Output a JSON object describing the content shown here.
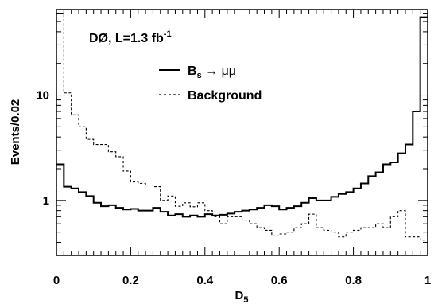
{
  "chart_data": {
    "type": "histogram-step",
    "annotation": {
      "main": "DØ, L=1.3 fb",
      "sup": "-1"
    },
    "xlabel": {
      "main": "D",
      "sub": "5"
    },
    "ylabel": "Events/0.02",
    "xlim": [
      0,
      1
    ],
    "ylim": [
      0.3,
      65
    ],
    "yscale": "log",
    "x_ticks": [
      {
        "value": 0,
        "label": "0"
      },
      {
        "value": 0.2,
        "label": "0.2"
      },
      {
        "value": 0.4,
        "label": "0.4"
      },
      {
        "value": 0.6,
        "label": "0.6"
      },
      {
        "value": 0.8,
        "label": "0.8"
      },
      {
        "value": 1,
        "label": "1"
      }
    ],
    "y_ticks": [
      {
        "value": 1,
        "label": "1"
      },
      {
        "value": 10,
        "label": "10"
      }
    ],
    "bin_edges": [
      0.0,
      0.02,
      0.04,
      0.06,
      0.08,
      0.1,
      0.12,
      0.14,
      0.16,
      0.18,
      0.2,
      0.22,
      0.24,
      0.26,
      0.28,
      0.3,
      0.32,
      0.34,
      0.36,
      0.38,
      0.4,
      0.42,
      0.44,
      0.46,
      0.48,
      0.5,
      0.52,
      0.54,
      0.56,
      0.58,
      0.6,
      0.62,
      0.64,
      0.66,
      0.68,
      0.7,
      0.72,
      0.74,
      0.76,
      0.78,
      0.8,
      0.82,
      0.84,
      0.86,
      0.88,
      0.9,
      0.92,
      0.94,
      0.96,
      0.98,
      1.0
    ],
    "series": [
      {
        "legend": {
          "main": "B",
          "sub": "s",
          "rest": " → μμ"
        },
        "line_style": "solid",
        "color": "#000000",
        "values": [
          2.2,
          1.35,
          1.3,
          1.2,
          1.1,
          0.95,
          0.88,
          0.9,
          0.85,
          0.82,
          0.83,
          0.8,
          0.8,
          0.85,
          0.78,
          0.72,
          0.74,
          0.7,
          0.72,
          0.7,
          0.74,
          0.72,
          0.73,
          0.75,
          0.78,
          0.8,
          0.82,
          0.85,
          0.9,
          0.88,
          0.82,
          0.85,
          0.88,
          0.95,
          1.05,
          1.0,
          1.0,
          1.08,
          1.15,
          1.2,
          1.3,
          1.45,
          1.7,
          1.85,
          2.2,
          2.3,
          2.8,
          3.4,
          7.0,
          55
        ]
      },
      {
        "legend": {
          "main": "Background",
          "sub": "",
          "rest": ""
        },
        "line_style": "dashed",
        "color": "#000000",
        "values": [
          60,
          10.5,
          6.5,
          5.0,
          3.8,
          3.4,
          3.4,
          2.9,
          2.6,
          1.9,
          1.5,
          1.45,
          1.4,
          1.35,
          1.0,
          1.1,
          0.88,
          0.95,
          0.87,
          0.95,
          0.8,
          0.7,
          0.6,
          0.7,
          0.7,
          0.65,
          0.6,
          0.55,
          0.52,
          0.46,
          0.48,
          0.5,
          0.55,
          0.6,
          0.74,
          0.55,
          0.52,
          0.5,
          0.45,
          0.5,
          0.52,
          0.55,
          0.55,
          0.6,
          0.55,
          0.7,
          0.8,
          0.45,
          0.45,
          0.42
        ]
      }
    ]
  }
}
